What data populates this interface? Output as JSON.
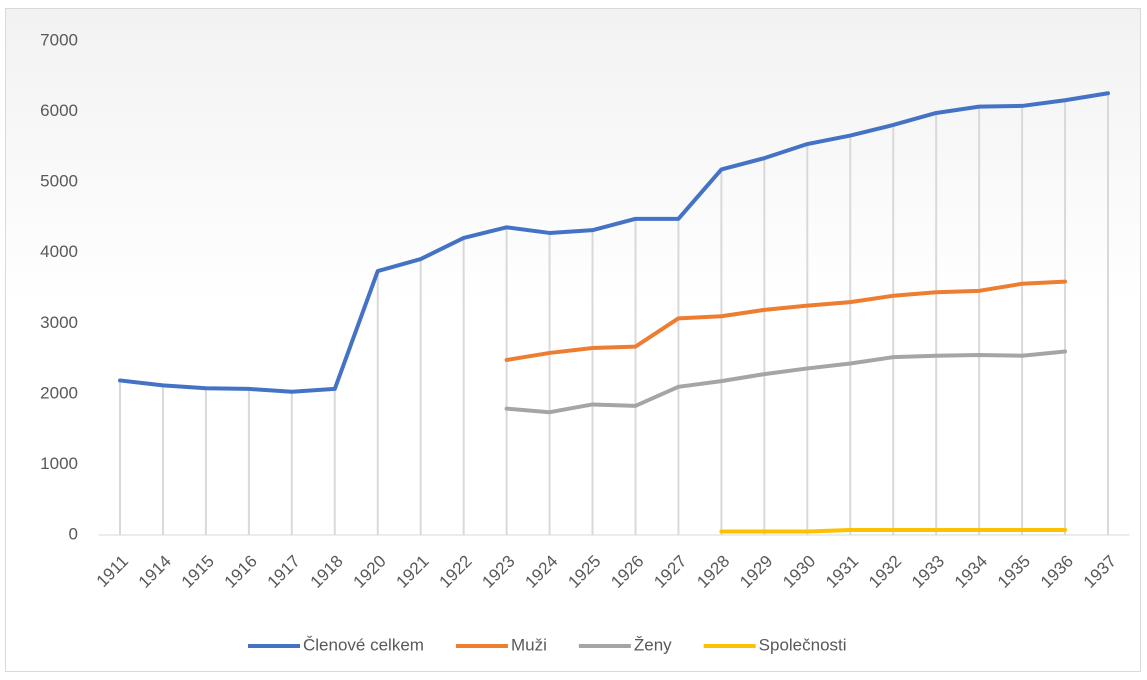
{
  "chart_data": {
    "type": "line",
    "categories": [
      "1911",
      "1914",
      "1915",
      "1916",
      "1917",
      "1918",
      "1920",
      "1921",
      "1922",
      "1923",
      "1924",
      "1925",
      "1926",
      "1927",
      "1928",
      "1929",
      "1930",
      "1931",
      "1932",
      "1933",
      "1934",
      "1935",
      "1936",
      "1937"
    ],
    "series": [
      {
        "name": "Členové celkem",
        "color": "#4472c4",
        "values": [
          2190,
          2120,
          2080,
          2070,
          2030,
          2070,
          3740,
          3910,
          4210,
          4360,
          4280,
          4320,
          4480,
          4480,
          5180,
          5340,
          5540,
          5660,
          5810,
          5980,
          6070,
          6080,
          6160,
          6260
        ]
      },
      {
        "name": "Muži",
        "color": "#ed7d31",
        "values": [
          null,
          null,
          null,
          null,
          null,
          null,
          null,
          null,
          null,
          2480,
          2580,
          2650,
          2670,
          3070,
          3100,
          3190,
          3250,
          3300,
          3390,
          3440,
          3460,
          3560,
          3590,
          null
        ]
      },
      {
        "name": "Ženy",
        "color": "#a5a5a5",
        "values": [
          null,
          null,
          null,
          null,
          null,
          null,
          null,
          null,
          null,
          1790,
          1740,
          1850,
          1830,
          2100,
          2180,
          2280,
          2360,
          2430,
          2520,
          2540,
          2550,
          2540,
          2600,
          null
        ]
      },
      {
        "name": "Společnosti",
        "color": "#ffc000",
        "values": [
          null,
          null,
          null,
          null,
          null,
          null,
          null,
          null,
          null,
          null,
          null,
          null,
          null,
          null,
          50,
          50,
          50,
          70,
          70,
          70,
          70,
          70,
          70,
          null
        ]
      }
    ],
    "ylim": [
      0,
      7000
    ],
    "yticks": [
      0,
      1000,
      2000,
      3000,
      4000,
      5000,
      6000,
      7000
    ],
    "legend": "bottom"
  }
}
